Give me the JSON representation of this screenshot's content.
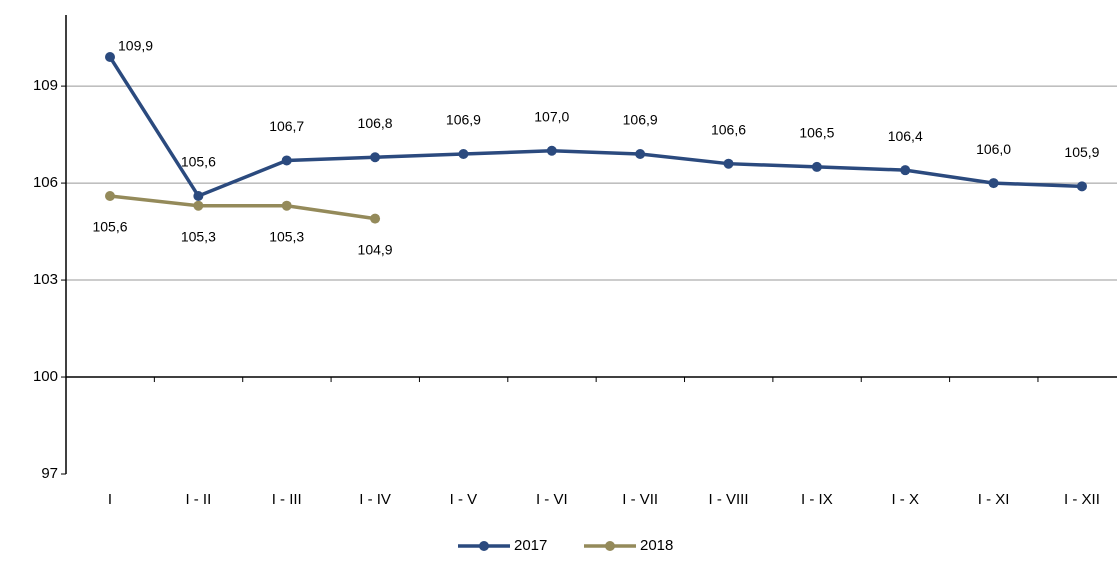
{
  "chart_data": {
    "type": "line",
    "categories": [
      "I",
      "I - II",
      "I - III",
      "I - IV",
      "I - V",
      "I - VI",
      "I - VII",
      "I - VIII",
      "I - IX",
      "I - X",
      "I - XI",
      "I - XII"
    ],
    "series": [
      {
        "name": "2017",
        "color": "#2b4a7e",
        "values": [
          109.9,
          105.6,
          106.7,
          106.8,
          106.9,
          107.0,
          106.9,
          106.6,
          106.5,
          106.4,
          106.0,
          105.9
        ],
        "value_labels": [
          "109,9",
          "105,6",
          "106,7",
          "106,8",
          "106,9",
          "107,0",
          "106,9",
          "106,6",
          "106,5",
          "106,4",
          "106,0",
          "105,9"
        ]
      },
      {
        "name": "2018",
        "color": "#948a5a",
        "values": [
          105.6,
          105.3,
          105.3,
          104.9,
          null,
          null,
          null,
          null,
          null,
          null,
          null,
          null
        ],
        "value_labels": [
          "105,6",
          "105,3",
          "105,3",
          "104,9",
          null,
          null,
          null,
          null,
          null,
          null,
          null,
          null
        ]
      }
    ],
    "ylim": [
      97,
      111.2
    ],
    "yticks": [
      97,
      100,
      103,
      106,
      109
    ],
    "grid": true,
    "xaxis_crosses": 100,
    "legend": "bottom"
  }
}
